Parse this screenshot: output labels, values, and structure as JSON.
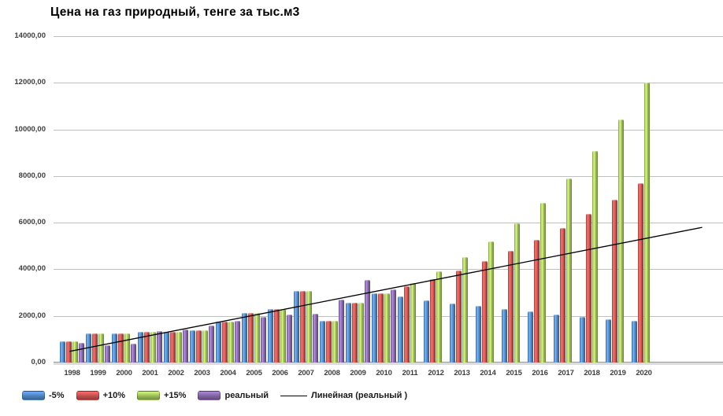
{
  "title": "Цена на газ природный, тенге за тыс.м3",
  "chart_data": {
    "type": "bar",
    "title": "Цена на газ природный, тенге за тыс.м3",
    "categories": [
      "1998",
      "1999",
      "2000",
      "2001",
      "2002",
      "2003",
      "2004",
      "2005",
      "2006",
      "2007",
      "2008",
      "2009",
      "2010",
      "2011",
      "2012",
      "2013",
      "2014",
      "2015",
      "2016",
      "2017",
      "2018",
      "2019",
      "2020"
    ],
    "series": [
      {
        "name": "-5%",
        "color": "#4f81bd",
        "values": [
          900,
          1250,
          1250,
          1300,
          1330,
          1390,
          1760,
          2130,
          2300,
          3060,
          1790,
          2580,
          2970,
          2820,
          2680,
          2540,
          2420,
          2290,
          2180,
          2070,
          1970,
          1870,
          1780
        ]
      },
      {
        "name": "+10%",
        "color": "#c0504d",
        "values": [
          900,
          1250,
          1250,
          1300,
          1330,
          1390,
          1760,
          2130,
          2300,
          3060,
          1790,
          2580,
          2970,
          3260,
          3590,
          3950,
          4340,
          4780,
          5260,
          5780,
          6360,
          6990,
          7690
        ]
      },
      {
        "name": "+15%",
        "color": "#9bbb59",
        "values": [
          900,
          1250,
          1250,
          1300,
          1330,
          1390,
          1760,
          2130,
          2300,
          3060,
          1790,
          2580,
          2970,
          3410,
          3920,
          4510,
          5190,
          5970,
          6860,
          7890,
          9070,
          10430,
          12000
        ]
      },
      {
        "name": "реальный",
        "color": "#8064a2",
        "values": [
          850,
          750,
          800,
          1350,
          1410,
          1600,
          1800,
          1960,
          2050,
          2100,
          2700,
          3540,
          3130,
          null,
          null,
          null,
          null,
          null,
          null,
          null,
          null,
          null,
          null
        ]
      }
    ],
    "trendline": {
      "name": "Линейная (реальный )",
      "color": "#000000",
      "start_value": 480,
      "end_value": 5800,
      "start_frac": 0.024,
      "end_frac": 0.969
    },
    "xlabel": "",
    "ylabel": "",
    "ylim": [
      0,
      14000
    ],
    "ytick_step": 2000,
    "ytick_labels": [
      "0,00",
      "2000,00",
      "4000,00",
      "6000,00",
      "8000,00",
      "10000,00",
      "12000,00",
      "14000,00"
    ],
    "grid": true,
    "legend_position": "bottom"
  },
  "legend": {
    "items": [
      "-5%",
      "+10%",
      "+15%",
      "реальный",
      "Линейная (реальный )"
    ]
  }
}
